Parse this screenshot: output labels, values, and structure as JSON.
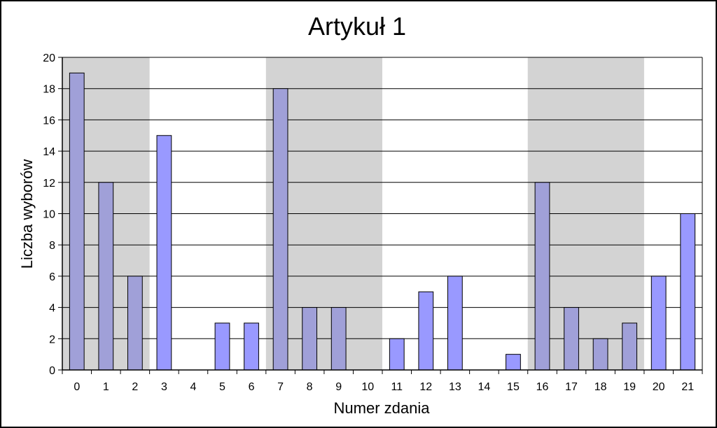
{
  "chart_data": {
    "type": "bar",
    "title": "Artykuł 1",
    "xlabel": "Numer zdania",
    "ylabel": "Liczba wyborów",
    "categories": [
      "0",
      "1",
      "2",
      "3",
      "4",
      "5",
      "6",
      "7",
      "8",
      "9",
      "10",
      "11",
      "12",
      "13",
      "14",
      "15",
      "16",
      "17",
      "18",
      "19",
      "20",
      "21"
    ],
    "values": [
      19,
      12,
      6,
      15,
      0,
      3,
      3,
      18,
      4,
      4,
      0,
      2,
      5,
      6,
      0,
      1,
      12,
      4,
      2,
      3,
      6,
      10
    ],
    "ylim": [
      0,
      20
    ],
    "yticks": [
      0,
      2,
      4,
      6,
      8,
      10,
      12,
      14,
      16,
      18,
      20
    ],
    "grid": true,
    "shaded_category_ranges": [
      [
        0,
        2
      ],
      [
        7,
        10
      ],
      [
        16,
        19
      ]
    ],
    "colors": {
      "bar_default": "#9999ff",
      "bar_in_shaded": "#a0a0d8",
      "shade": "#d3d3d3",
      "bar_edge": "#000000"
    }
  }
}
